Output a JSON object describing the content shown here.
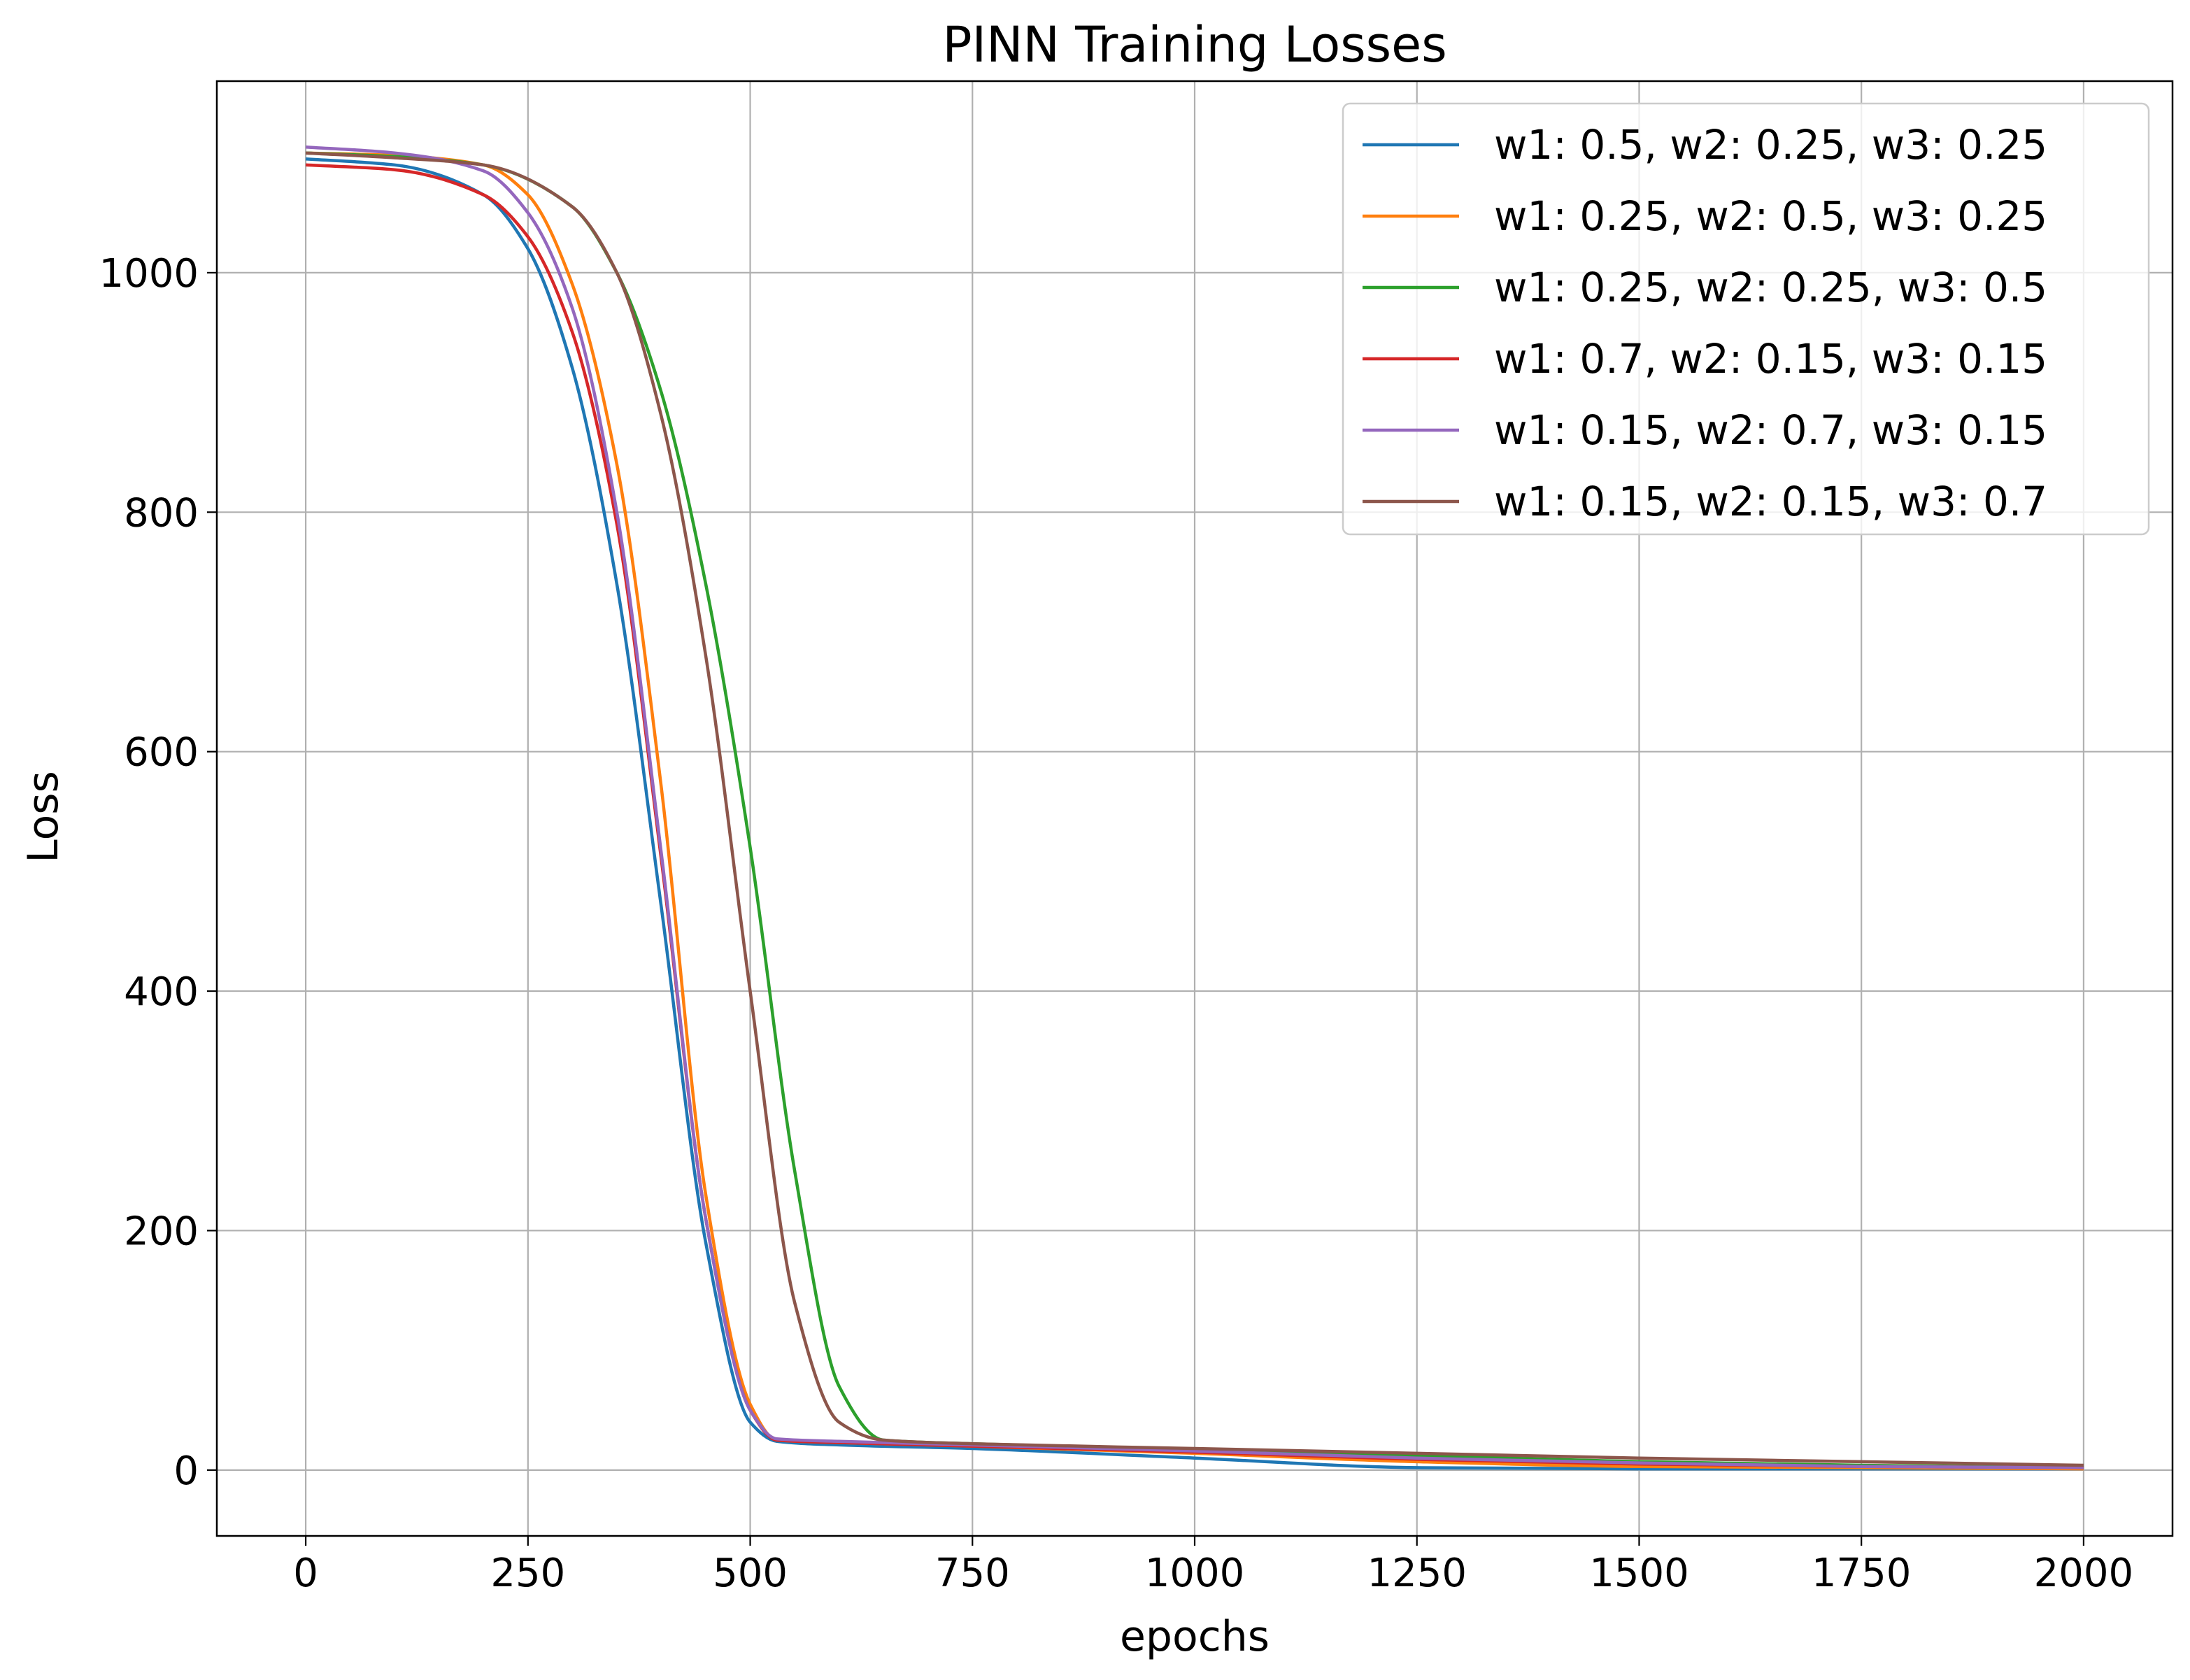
{
  "chart_data": {
    "type": "line",
    "title": "PINN Training Losses",
    "xlabel": "epochs",
    "ylabel": "Loss",
    "xlim": [
      -100,
      2100
    ],
    "ylim": [
      -55,
      1160
    ],
    "xticks": [
      0,
      250,
      500,
      750,
      1000,
      1250,
      1500,
      1750,
      2000
    ],
    "yticks": [
      0,
      200,
      400,
      600,
      800,
      1000
    ],
    "grid": true,
    "legend_position": "top-right",
    "series": [
      {
        "name": "w1: 0.5, w2: 0.25, w3: 0.25",
        "color": "#1f77b4",
        "x": [
          0,
          100,
          200,
          250,
          300,
          350,
          400,
          450,
          500,
          530,
          600,
          750,
          1000,
          1250,
          1500,
          1750,
          2000
        ],
        "y": [
          1095,
          1090,
          1065,
          1020,
          920,
          740,
          470,
          190,
          40,
          24,
          21,
          18,
          10,
          2,
          1,
          1,
          1
        ]
      },
      {
        "name": "w1: 0.25, w2: 0.5, w3: 0.25",
        "color": "#ff7f0e",
        "x": [
          0,
          100,
          200,
          250,
          300,
          350,
          400,
          450,
          500,
          530,
          600,
          750,
          1000,
          1250,
          1500,
          1750,
          2000
        ],
        "y": [
          1100,
          1098,
          1090,
          1065,
          990,
          840,
          570,
          230,
          55,
          25,
          23,
          20,
          14,
          7,
          3,
          2,
          1
        ]
      },
      {
        "name": "w1: 0.25, w2: 0.25, w3: 0.5",
        "color": "#2ca02c",
        "x": [
          0,
          100,
          200,
          300,
          350,
          400,
          450,
          500,
          550,
          600,
          650,
          750,
          1000,
          1250,
          1500,
          1750,
          2000
        ],
        "y": [
          1100,
          1097,
          1090,
          1055,
          1000,
          900,
          740,
          520,
          250,
          70,
          25,
          22,
          17,
          12,
          7,
          4,
          2
        ]
      },
      {
        "name": "w1: 0.7, w2: 0.15, w3: 0.15",
        "color": "#d62728",
        "x": [
          0,
          100,
          200,
          250,
          300,
          350,
          400,
          450,
          500,
          530,
          600,
          750,
          1000,
          1250,
          1500,
          1750,
          2000
        ],
        "y": [
          1090,
          1086,
          1065,
          1030,
          950,
          790,
          510,
          210,
          50,
          25,
          23,
          20,
          15,
          9,
          5,
          3,
          2
        ]
      },
      {
        "name": "w1: 0.15, w2: 0.7, w3: 0.15",
        "color": "#9467bd",
        "x": [
          0,
          100,
          200,
          250,
          300,
          350,
          400,
          450,
          500,
          530,
          600,
          750,
          1000,
          1250,
          1500,
          1750,
          2000
        ],
        "y": [
          1105,
          1100,
          1085,
          1050,
          970,
          800,
          515,
          210,
          50,
          26,
          24,
          21,
          16,
          10,
          6,
          3,
          2
        ]
      },
      {
        "name": "w1: 0.15, w2: 0.15, w3: 0.7",
        "color": "#8c564b",
        "x": [
          0,
          100,
          200,
          300,
          350,
          400,
          450,
          500,
          550,
          600,
          650,
          750,
          1000,
          1250,
          1500,
          1750,
          2000
        ],
        "y": [
          1100,
          1096,
          1090,
          1055,
          1000,
          880,
          680,
          400,
          140,
          40,
          25,
          22,
          18,
          14,
          10,
          7,
          4
        ]
      }
    ]
  }
}
